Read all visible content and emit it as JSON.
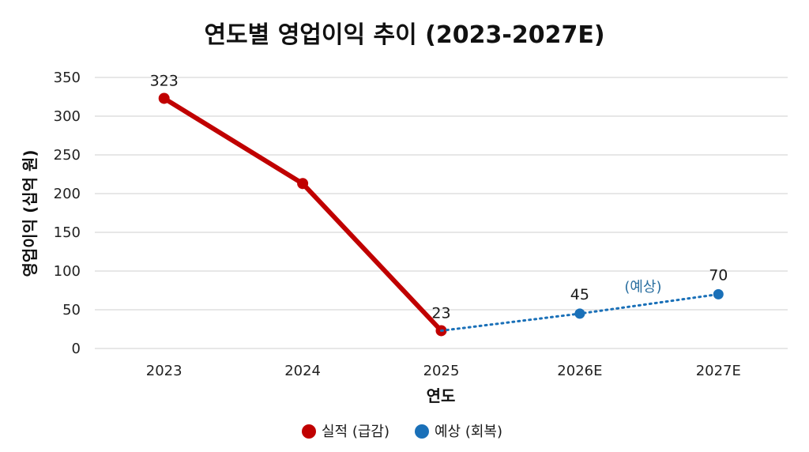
{
  "chart_data": {
    "type": "line",
    "title": "연도별 영업이익 추이 (2023-2027E)",
    "xlabel": "연도",
    "ylabel": "영업이익 (십억 원)",
    "categories": [
      "2023",
      "2024",
      "2025",
      "2026E",
      "2027E"
    ],
    "ylim": [
      0,
      350
    ],
    "yticks": [
      0,
      50,
      100,
      150,
      200,
      250,
      300,
      350
    ],
    "grid": true,
    "legend_position": "bottom",
    "series": [
      {
        "name": "실적 (급감)",
        "color": "#c00000",
        "style": "solid",
        "points": [
          {
            "x": "2023",
            "y": 323,
            "label": "323"
          },
          {
            "x": "2024",
            "y": 213,
            "label": ""
          },
          {
            "x": "2025",
            "y": 23,
            "label": "23"
          }
        ]
      },
      {
        "name": "예상 (회복)",
        "color": "#1a70b8",
        "style": "dotted",
        "points": [
          {
            "x": "2025",
            "y": 23,
            "label": ""
          },
          {
            "x": "2026E",
            "y": 45,
            "label": "45"
          },
          {
            "x": "2027E",
            "y": 70,
            "label": "70"
          }
        ]
      }
    ],
    "annotations": [
      {
        "text": "(예상)",
        "near_x": "2026E",
        "color": "#2a6fa0"
      }
    ]
  }
}
